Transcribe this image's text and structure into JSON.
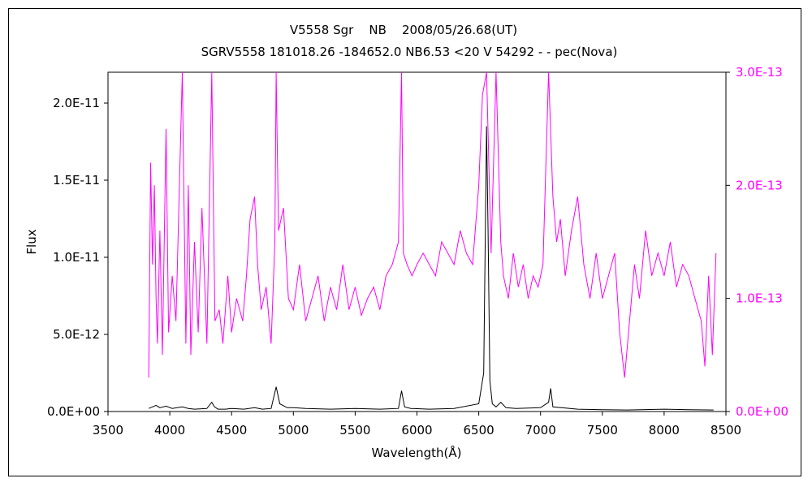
{
  "chart_data": {
    "type": "line",
    "title": "V5558 Sgr    NB    2008/05/26.68(UT)",
    "subtitle": "SGRV5558 181018.26 -184652.0 NB6.53 <20 V 54292 - - pec(Nova)",
    "xlabel": "Wavelength(Å)",
    "ylabel": "Flux",
    "xlim": [
      3500,
      8500
    ],
    "ylim_left": [
      0,
      2.2e-11
    ],
    "ylim_right": [
      0,
      3e-13
    ],
    "grid": false,
    "x_ticks": [
      "3500",
      "4000",
      "4500",
      "5000",
      "5500",
      "6000",
      "6500",
      "7000",
      "7500",
      "8000",
      "8500"
    ],
    "y_left_ticks": [
      "0.0E+00",
      "5.0E-12",
      "1.0E-11",
      "1.5E-11",
      "2.0E-11"
    ],
    "y_right_ticks": [
      "0.0E+00",
      "1.0E-13",
      "2.0E-13",
      "3.0E-13"
    ],
    "colors": {
      "series_left": "#000000",
      "series_right": "#ff00ff",
      "axis": "#000000"
    },
    "series": [
      {
        "axis": "left",
        "x": [
          3830,
          3860,
          3889,
          3920,
          3970,
          4020,
          4101,
          4150,
          4200,
          4300,
          4340,
          4362,
          4390,
          4450,
          4500,
          4600,
          4686,
          4750,
          4820,
          4861,
          4890,
          4950,
          5000,
          5100,
          5300,
          5500,
          5700,
          5850,
          5875,
          5900,
          5950,
          6100,
          6300,
          6500,
          6540,
          6563,
          6575,
          6590,
          6610,
          6640,
          6678,
          6720,
          6800,
          7000,
          7065,
          7082,
          7100,
          7300,
          7500,
          7700,
          8000,
          8200,
          8400
        ],
        "y": [
          2e-13,
          3e-13,
          4e-13,
          2.5e-13,
          3.5e-13,
          2e-13,
          3e-13,
          2e-13,
          1.5e-13,
          2e-13,
          6e-13,
          3e-13,
          1.5e-13,
          1.5e-13,
          2e-13,
          1.5e-13,
          2.5e-13,
          1.5e-13,
          2e-13,
          1.6e-12,
          5e-13,
          2.5e-13,
          2.5e-13,
          2e-13,
          1.5e-13,
          2e-13,
          1.5e-13,
          2e-13,
          1.35e-12,
          3e-13,
          2e-13,
          1.5e-13,
          2e-13,
          5e-13,
          2.5e-12,
          1.85e-11,
          1.2e-11,
          2e-12,
          5e-13,
          3e-13,
          6e-13,
          2.5e-13,
          2e-13,
          2.5e-13,
          6e-13,
          1.5e-12,
          3e-13,
          1.5e-13,
          1.2e-13,
          1e-13,
          1.5e-13,
          1.2e-13,
          1e-13
        ]
      },
      {
        "axis": "right",
        "x": [
          3830,
          3845,
          3860,
          3875,
          3889,
          3900,
          3920,
          3940,
          3970,
          3990,
          4020,
          4050,
          4101,
          4130,
          4150,
          4170,
          4200,
          4230,
          4260,
          4300,
          4340,
          4365,
          4400,
          4430,
          4470,
          4500,
          4540,
          4590,
          4620,
          4650,
          4686,
          4710,
          4740,
          4780,
          4820,
          4850,
          4861,
          4880,
          4920,
          4960,
          5000,
          5050,
          5100,
          5150,
          5200,
          5250,
          5300,
          5350,
          5400,
          5450,
          5500,
          5550,
          5600,
          5650,
          5700,
          5750,
          5800,
          5850,
          5875,
          5890,
          5920,
          5960,
          6000,
          6050,
          6100,
          6150,
          6200,
          6250,
          6300,
          6350,
          6400,
          6450,
          6500,
          6530,
          6563,
          6600,
          6640,
          6678,
          6700,
          6740,
          6780,
          6820,
          6860,
          6900,
          6940,
          6980,
          7020,
          7065,
          7100,
          7130,
          7160,
          7200,
          7250,
          7300,
          7350,
          7400,
          7450,
          7500,
          7550,
          7600,
          7640,
          7680,
          7720,
          7760,
          7800,
          7850,
          7900,
          7950,
          8000,
          8050,
          8100,
          8150,
          8200,
          8250,
          8300,
          8330,
          8360,
          8390,
          8420
        ],
        "y": [
          3e-14,
          2.2e-13,
          1.3e-13,
          2e-13,
          1e-13,
          6e-14,
          1.6e-13,
          5e-14,
          2.5e-13,
          7e-14,
          1.2e-13,
          8e-14,
          3e-13,
          6e-14,
          2e-13,
          5e-14,
          1.5e-13,
          7e-14,
          1.8e-13,
          6e-14,
          3e-13,
          8e-14,
          9e-14,
          6e-14,
          1.2e-13,
          7e-14,
          1e-13,
          8e-14,
          1.2e-13,
          1.7e-13,
          1.9e-13,
          1.3e-13,
          9e-14,
          1.1e-13,
          6e-14,
          1.5e-13,
          3e-13,
          1.6e-13,
          1.8e-13,
          1e-13,
          9e-14,
          1.3e-13,
          8e-14,
          1e-13,
          1.2e-13,
          8e-14,
          1.1e-13,
          9e-14,
          1.3e-13,
          9e-14,
          1.1e-13,
          8.5e-14,
          1e-13,
          1.1e-13,
          9e-14,
          1.2e-13,
          1.3e-13,
          1.5e-13,
          3e-13,
          1.4e-13,
          1.3e-13,
          1.2e-13,
          1.3e-13,
          1.4e-13,
          1.3e-13,
          1.2e-13,
          1.5e-13,
          1.4e-13,
          1.3e-13,
          1.6e-13,
          1.4e-13,
          1.3e-13,
          2e-13,
          2.8e-13,
          3e-13,
          1.4e-13,
          3e-13,
          1.5e-13,
          1.2e-13,
          1e-13,
          1.4e-13,
          1.1e-13,
          1.3e-13,
          1e-13,
          1.2e-13,
          1.1e-13,
          1.3e-13,
          3e-13,
          1.9e-13,
          1.5e-13,
          1.7e-13,
          1.2e-13,
          1.6e-13,
          1.9e-13,
          1.3e-13,
          1e-13,
          1.4e-13,
          1e-13,
          1.2e-13,
          1.4e-13,
          7e-14,
          3e-14,
          8e-14,
          1.3e-13,
          1e-13,
          1.6e-13,
          1.2e-13,
          1.4e-13,
          1.2e-13,
          1.5e-13,
          1.1e-13,
          1.3e-13,
          1.2e-13,
          1e-13,
          8e-14,
          4e-14,
          1.2e-13,
          5e-14,
          1.4e-13
        ]
      }
    ]
  }
}
